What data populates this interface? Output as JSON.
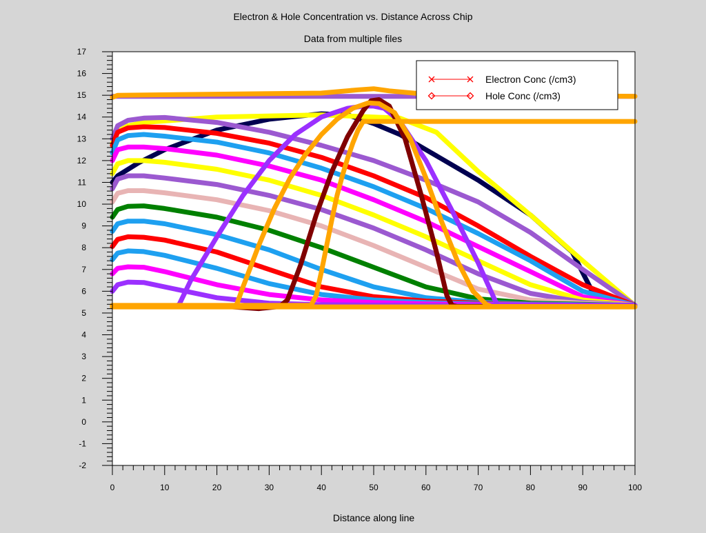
{
  "chart_data": {
    "type": "line",
    "title": "Electron & Hole Concentration vs. Distance Across Chip",
    "subtitle": "Data from multiple files",
    "xlabel": "Distance along line",
    "ylabel": "",
    "xlim": [
      0,
      100
    ],
    "ylim": [
      -2,
      17
    ],
    "xticks": [
      0,
      10,
      20,
      30,
      40,
      50,
      60,
      70,
      80,
      90,
      100
    ],
    "yticks": [
      -2,
      -1,
      0,
      1,
      2,
      3,
      4,
      5,
      6,
      7,
      8,
      9,
      10,
      11,
      12,
      13,
      14,
      15,
      16,
      17
    ],
    "grid": false,
    "legend_position": "top-right",
    "legend": [
      {
        "label": "Electron Conc (/cm3)",
        "marker": "x",
        "color": "#ff0000"
      },
      {
        "label": "Hole Conc (/cm3)",
        "marker": "diamond",
        "color": "#ff0000"
      }
    ],
    "series": [
      {
        "color": "#9b59d0",
        "x": [
          0,
          100
        ],
        "y": [
          14.95,
          14.95
        ]
      },
      {
        "color": "#ffa500",
        "x": [
          0,
          1,
          20,
          40,
          47,
          50,
          53,
          60,
          80,
          100
        ],
        "y": [
          14.9,
          15.0,
          15.05,
          15.1,
          15.25,
          15.3,
          15.2,
          15.05,
          15.0,
          14.95
        ]
      },
      {
        "color": "#000050",
        "x": [
          0,
          1,
          5,
          10,
          20,
          30,
          40,
          45,
          50,
          55,
          60,
          70,
          80,
          88,
          92,
          95,
          100
        ],
        "y": [
          11.0,
          11.3,
          11.9,
          12.5,
          13.4,
          13.9,
          14.15,
          14.1,
          13.7,
          13.2,
          12.5,
          11.1,
          9.5,
          7.8,
          5.9,
          5.3,
          5.3
        ]
      },
      {
        "color": "#ffff00",
        "x": [
          0,
          1,
          3,
          6,
          10,
          20,
          40,
          55,
          62,
          70,
          80,
          90,
          100
        ],
        "y": [
          12.8,
          13.35,
          13.6,
          13.75,
          13.82,
          14.0,
          14.1,
          13.95,
          13.3,
          11.5,
          9.5,
          7.4,
          5.35
        ]
      },
      {
        "color": "#9b59d0",
        "x": [
          0,
          1,
          3,
          6,
          10,
          20,
          30,
          40,
          50,
          60,
          70,
          80,
          90,
          100
        ],
        "y": [
          13.0,
          13.6,
          13.85,
          13.95,
          13.98,
          13.75,
          13.3,
          12.7,
          12.0,
          11.1,
          10.1,
          8.7,
          7.0,
          5.35
        ]
      },
      {
        "color": "#ff0000",
        "x": [
          0,
          1,
          3,
          6,
          10,
          20,
          30,
          40,
          50,
          60,
          70,
          80,
          90,
          100
        ],
        "y": [
          12.7,
          13.3,
          13.5,
          13.55,
          13.52,
          13.25,
          12.8,
          12.15,
          11.3,
          10.3,
          9.0,
          7.6,
          6.3,
          5.35
        ]
      },
      {
        "color": "#1ea0f0",
        "x": [
          0,
          1,
          3,
          6,
          10,
          20,
          30,
          40,
          50,
          60,
          70,
          80,
          90,
          100
        ],
        "y": [
          12.35,
          12.95,
          13.15,
          13.2,
          13.12,
          12.85,
          12.35,
          11.65,
          10.8,
          9.8,
          8.65,
          7.4,
          6.0,
          5.35
        ]
      },
      {
        "color": "#ff00ff",
        "x": [
          0,
          1,
          3,
          6,
          10,
          20,
          30,
          40,
          50,
          60,
          70,
          80,
          90,
          100
        ],
        "y": [
          12.0,
          12.5,
          12.62,
          12.62,
          12.55,
          12.25,
          11.75,
          11.1,
          10.2,
          9.2,
          8.05,
          6.9,
          5.75,
          5.35
        ]
      },
      {
        "color": "#ffff00",
        "x": [
          0,
          1,
          3,
          6,
          10,
          20,
          30,
          40,
          50,
          60,
          70,
          80,
          90,
          100
        ],
        "y": [
          11.4,
          11.85,
          12.0,
          12.0,
          11.92,
          11.6,
          11.1,
          10.4,
          9.5,
          8.5,
          7.4,
          6.3,
          5.6,
          5.35
        ]
      },
      {
        "color": "#9b59d0",
        "x": [
          0,
          1,
          3,
          6,
          10,
          20,
          30,
          40,
          50,
          60,
          70,
          80,
          90,
          100
        ],
        "y": [
          10.7,
          11.15,
          11.3,
          11.3,
          11.2,
          10.9,
          10.4,
          9.75,
          8.9,
          7.9,
          6.8,
          5.9,
          5.5,
          5.35
        ]
      },
      {
        "color": "#e8b4b4",
        "x": [
          0,
          1,
          3,
          6,
          10,
          20,
          30,
          40,
          50,
          60,
          70,
          80,
          90,
          100
        ],
        "y": [
          10.1,
          10.5,
          10.62,
          10.62,
          10.52,
          10.2,
          9.7,
          9.0,
          8.1,
          7.1,
          6.1,
          5.6,
          5.45,
          5.35
        ]
      },
      {
        "color": "#008000",
        "x": [
          0,
          1,
          3,
          6,
          10,
          20,
          30,
          40,
          50,
          60,
          70,
          80,
          90,
          100
        ],
        "y": [
          9.4,
          9.75,
          9.9,
          9.92,
          9.8,
          9.4,
          8.8,
          8.0,
          7.1,
          6.2,
          5.65,
          5.45,
          5.4,
          5.35
        ]
      },
      {
        "color": "#1ea0f0",
        "x": [
          0,
          1,
          3,
          6,
          10,
          20,
          30,
          40,
          50,
          60,
          70,
          80,
          90,
          100
        ],
        "y": [
          8.75,
          9.1,
          9.22,
          9.22,
          9.1,
          8.6,
          7.9,
          7.0,
          6.2,
          5.7,
          5.5,
          5.42,
          5.38,
          5.35
        ]
      },
      {
        "color": "#ff0000",
        "x": [
          0,
          1,
          3,
          6,
          10,
          20,
          30,
          40,
          50,
          60,
          70,
          80,
          90,
          100
        ],
        "y": [
          8.05,
          8.38,
          8.5,
          8.48,
          8.35,
          7.8,
          7.0,
          6.2,
          5.75,
          5.55,
          5.45,
          5.4,
          5.37,
          5.35
        ]
      },
      {
        "color": "#1ea0f0",
        "x": [
          0,
          1,
          3,
          6,
          10,
          20,
          30,
          40,
          50,
          60,
          70,
          80,
          90,
          100
        ],
        "y": [
          7.45,
          7.75,
          7.85,
          7.82,
          7.65,
          7.05,
          6.35,
          5.85,
          5.6,
          5.48,
          5.42,
          5.39,
          5.37,
          5.35
        ]
      },
      {
        "color": "#ff00ff",
        "x": [
          0,
          1,
          3,
          6,
          10,
          20,
          30,
          40,
          50,
          60,
          70,
          80,
          90,
          100
        ],
        "y": [
          6.8,
          7.05,
          7.12,
          7.1,
          6.9,
          6.3,
          5.85,
          5.6,
          5.48,
          5.42,
          5.39,
          5.37,
          5.36,
          5.35
        ]
      },
      {
        "color": "#9b30ff",
        "x": [
          0,
          1,
          3,
          6,
          10,
          20,
          30,
          40,
          50,
          60,
          70,
          80,
          90,
          100
        ],
        "y": [
          6.0,
          6.3,
          6.42,
          6.4,
          6.2,
          5.7,
          5.45,
          5.38,
          5.36,
          5.35,
          5.35,
          5.35,
          5.35,
          5.35
        ]
      },
      {
        "color": "#9b30ff",
        "x": [
          0,
          12,
          12.8,
          15,
          20,
          25,
          30,
          35,
          40,
          45,
          48,
          50,
          52,
          55,
          60,
          65,
          70,
          73,
          73.8,
          100
        ],
        "y": [
          5.3,
          5.3,
          5.4,
          6.5,
          8.5,
          10.4,
          12.0,
          13.2,
          14.0,
          14.4,
          14.5,
          14.5,
          14.4,
          13.8,
          12.0,
          9.7,
          7.3,
          5.7,
          5.3,
          5.3
        ]
      },
      {
        "color": "#800000",
        "x": [
          0,
          22,
          28,
          32,
          33.5,
          36,
          39,
          42,
          45,
          48,
          49.5,
          51,
          53,
          56,
          59,
          62,
          64,
          65,
          66,
          100
        ],
        "y": [
          5.3,
          5.3,
          5.2,
          5.3,
          5.6,
          7.2,
          9.5,
          11.5,
          13.1,
          14.3,
          14.75,
          14.8,
          14.5,
          13.0,
          10.5,
          7.8,
          5.8,
          5.35,
          5.3,
          5.3
        ]
      },
      {
        "color": "#ffa500",
        "x": [
          0,
          23,
          23.8,
          25,
          28,
          31,
          34,
          37,
          40,
          43,
          46,
          49,
          51,
          54,
          57,
          60,
          63,
          66,
          69,
          71.5,
          72.5,
          100
        ],
        "y": [
          5.3,
          5.3,
          5.4,
          6.2,
          8.1,
          9.8,
          11.2,
          12.3,
          13.2,
          13.9,
          14.4,
          14.65,
          14.62,
          14.2,
          13.0,
          11.2,
          9.2,
          7.4,
          6.0,
          5.4,
          5.3,
          5.3
        ]
      },
      {
        "color": "#ffa500",
        "x": [
          0,
          38,
          39,
          40,
          41,
          42,
          43,
          44,
          45,
          46,
          47,
          48,
          100
        ],
        "y": [
          5.35,
          5.35,
          5.8,
          6.9,
          8.1,
          9.3,
          10.4,
          11.3,
          12.1,
          12.8,
          13.4,
          13.8,
          13.8
        ]
      },
      {
        "color": "#ffa500",
        "x": [
          0,
          100
        ],
        "y": [
          5.28,
          5.28
        ]
      }
    ]
  }
}
